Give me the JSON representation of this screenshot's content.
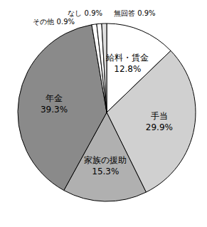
{
  "chart_data": {
    "type": "pie",
    "categories": [
      "給料・賃金",
      "手当",
      "家族の援助",
      "年金",
      "その他",
      "なし",
      "無回答"
    ],
    "values": [
      12.8,
      29.9,
      15.3,
      39.3,
      0.9,
      0.9,
      0.9
    ],
    "value_labels": [
      "12.8%",
      "29.9%",
      "15.3%",
      "39.3%",
      "0.9%",
      "0.9%",
      "0.9%"
    ],
    "colors": [
      "#ffffff",
      "#d0d0d0",
      "#b0b0b0",
      "#8a8a8a",
      "#ffffff",
      "#ffffff",
      "#e0e0e0"
    ],
    "data_labels": true
  }
}
